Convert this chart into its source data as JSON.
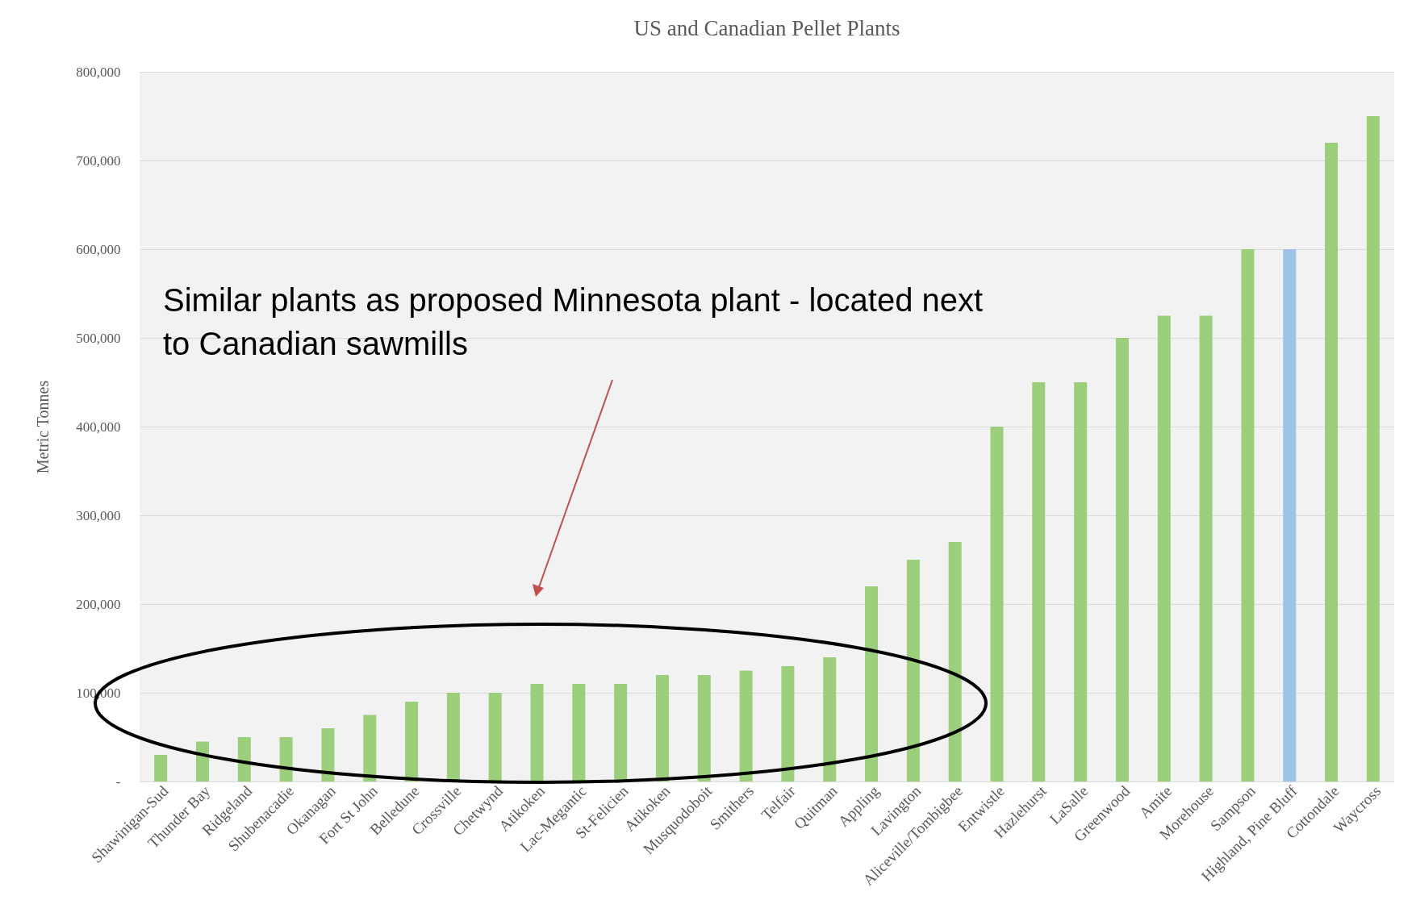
{
  "chart_data": {
    "type": "bar",
    "title": "US and Canadian  Pellet Plants",
    "ylabel": "Metric Tonnes",
    "categories": [
      "Shawinigan-Sud",
      "Thunder Bay",
      "Ridgeland",
      "Shubenacadie",
      "Okanagan",
      "Fort St John",
      "Belledune",
      "Crossville",
      "Chetwynd",
      "Atikoken",
      "Lac-Megantic",
      "St-Felicien",
      "Atikoken",
      "Musquodoboit",
      "Smithers",
      "Telfair",
      "Quitman",
      "Appling",
      "Lavington",
      "Aliceville/Tombigbee",
      "Entwistle",
      "Hazlehurst",
      "LaSalle",
      "Greenwood",
      "Amite",
      "Morehouse",
      "Sampson",
      "Highland, Pine Bluff",
      "Cottondale",
      "Waycross"
    ],
    "values": [
      30000,
      45000,
      50000,
      50000,
      60000,
      75000,
      90000,
      100000,
      100000,
      110000,
      110000,
      110000,
      120000,
      120000,
      125000,
      130000,
      140000,
      220000,
      250000,
      270000,
      400000,
      450000,
      450000,
      500000,
      525000,
      525000,
      600000,
      600000,
      720000,
      750000
    ],
    "colors": [
      "#9bcf7b",
      "#9bcf7b",
      "#9bcf7b",
      "#9bcf7b",
      "#9bcf7b",
      "#9bcf7b",
      "#9bcf7b",
      "#9bcf7b",
      "#9bcf7b",
      "#9bcf7b",
      "#9bcf7b",
      "#9bcf7b",
      "#9bcf7b",
      "#9bcf7b",
      "#9bcf7b",
      "#9bcf7b",
      "#9bcf7b",
      "#9bcf7b",
      "#9bcf7b",
      "#9bcf7b",
      "#9bcf7b",
      "#9bcf7b",
      "#9bcf7b",
      "#9bcf7b",
      "#9bcf7b",
      "#9bcf7b",
      "#9bcf7b",
      "#9dc3e6",
      "#9bcf7b",
      "#9bcf7b"
    ],
    "ylim": [
      0,
      800000
    ],
    "yticks": [
      {
        "value": 0,
        "label": "-"
      },
      {
        "value": 100000,
        "label": "100,000"
      },
      {
        "value": 200000,
        "label": "200,000"
      },
      {
        "value": 300000,
        "label": "300,000"
      },
      {
        "value": 400000,
        "label": "400,000"
      },
      {
        "value": 500000,
        "label": "500,000"
      },
      {
        "value": 600000,
        "label": "600,000"
      },
      {
        "value": 700000,
        "label": "700,000"
      },
      {
        "value": 800000,
        "label": "800,000"
      }
    ],
    "grid": "y",
    "annotations": [
      "Similar plants as proposed Minnesota plant - located next to Canadian sawmills"
    ]
  }
}
